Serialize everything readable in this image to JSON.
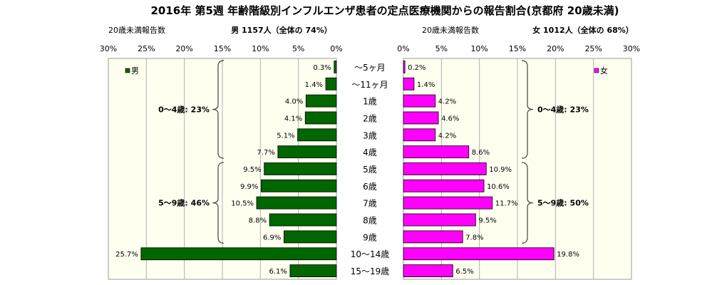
{
  "title": "2016年 第5週 年齢階級別インフルエンザ患者の定点医療機関からの報告割合(京都府 20歳未満)",
  "colors": {
    "male": "#006600",
    "female": "#ff00ff",
    "plot_bg": "#fffff0",
    "grid": "#b0b0b0",
    "bracket": "#444444"
  },
  "chart_data": [
    {
      "type": "bar",
      "orientation": "horizontal",
      "direction": "right-to-left",
      "header": "20歳未満報告数",
      "summary": "男 1157人（全体の 74%）",
      "legend": "男",
      "legend_position": "top-left",
      "xlim": [
        0,
        30
      ],
      "grid": true,
      "ticks": [
        "30%",
        "25%",
        "20%",
        "15%",
        "10%",
        "5%",
        "0%"
      ],
      "categories": [
        "～5ヶ月",
        "～11ヶ月",
        "1歳",
        "2歳",
        "3歳",
        "4歳",
        "5歳",
        "6歳",
        "7歳",
        "8歳",
        "9歳",
        "10～14歳",
        "15～19歳"
      ],
      "values": [
        0.3,
        1.4,
        4.0,
        4.1,
        5.1,
        7.7,
        9.5,
        9.9,
        10.5,
        8.8,
        6.9,
        25.7,
        6.1
      ],
      "labels": [
        "0.3%",
        "1.4%",
        "4.0%",
        "4.1%",
        "5.1%",
        "7.7%",
        "9.5%",
        "9.9%",
        "10.5%",
        "8.8%",
        "6.9%",
        "25.7%",
        "6.1%"
      ],
      "groups": [
        {
          "label": "0～4歳: 23%",
          "from": 0,
          "to": 5
        },
        {
          "label": "5～9歳: 46%",
          "from": 6,
          "to": 10
        }
      ]
    },
    {
      "type": "bar",
      "orientation": "horizontal",
      "direction": "left-to-right",
      "header": "20歳未満報告数",
      "summary": "女 1012人（全体の 68%）",
      "legend": "女",
      "legend_position": "top-right",
      "xlim": [
        0,
        30
      ],
      "grid": true,
      "ticks": [
        "0%",
        "5%",
        "10%",
        "15%",
        "20%",
        "25%",
        "30%"
      ],
      "categories": [
        "～5ヶ月",
        "～11ヶ月",
        "1歳",
        "2歳",
        "3歳",
        "4歳",
        "5歳",
        "6歳",
        "7歳",
        "8歳",
        "9歳",
        "10～14歳",
        "15～19歳"
      ],
      "values": [
        0.2,
        1.4,
        4.2,
        4.6,
        4.2,
        8.6,
        10.9,
        10.6,
        11.7,
        9.5,
        7.8,
        19.8,
        6.5
      ],
      "labels": [
        "0.2%",
        "1.4%",
        "4.2%",
        "4.6%",
        "4.2%",
        "8.6%",
        "10.9%",
        "10.6%",
        "11.7%",
        "9.5%",
        "7.8%",
        "19.8%",
        "6.5%"
      ],
      "groups": [
        {
          "label": "0～4歳: 23%",
          "from": 0,
          "to": 5
        },
        {
          "label": "5～9歳: 50%",
          "from": 6,
          "to": 10
        }
      ]
    }
  ]
}
